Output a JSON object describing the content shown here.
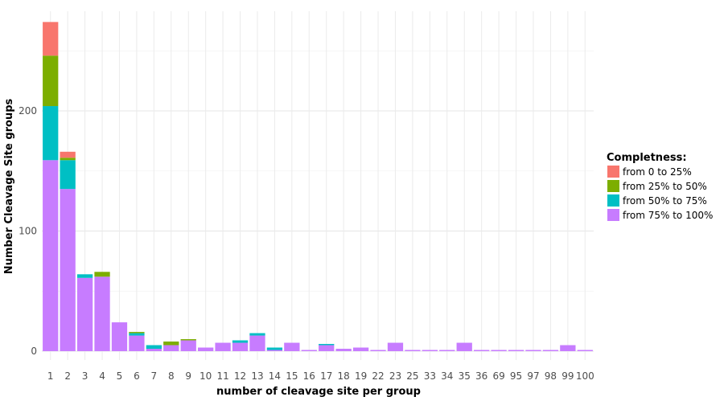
{
  "chart_data": {
    "type": "bar",
    "stacked": true,
    "title": "",
    "xlabel": "number of cleavage site per group",
    "ylabel": "Number Cleavage Site groups",
    "ylim": [
      0,
      280
    ],
    "yticks": [
      0,
      100,
      200
    ],
    "grid": true,
    "legend": {
      "title": "Completness:",
      "position": "right"
    },
    "categories": [
      "1",
      "2",
      "3",
      "4",
      "5",
      "6",
      "7",
      "8",
      "9",
      "10",
      "11",
      "12",
      "13",
      "14",
      "15",
      "16",
      "17",
      "18",
      "19",
      "22",
      "23",
      "25",
      "33",
      "34",
      "35",
      "36",
      "69",
      "95",
      "97",
      "98",
      "99",
      "100"
    ],
    "series": [
      {
        "name": "from 75% to 100%",
        "color": "#C77CFF",
        "values": [
          159,
          135,
          61,
          62,
          24,
          13,
          2,
          5,
          9,
          3,
          7,
          7,
          13,
          1,
          7,
          1,
          5,
          2,
          3,
          1,
          7,
          1,
          1,
          1,
          7,
          1,
          1,
          1,
          1,
          1,
          5,
          1
        ]
      },
      {
        "name": "from 50% to 75%",
        "color": "#00BFC4",
        "values": [
          45,
          24,
          3,
          0,
          0,
          2,
          3,
          0,
          0,
          0,
          0,
          2,
          2,
          2,
          0,
          0,
          1,
          0,
          0,
          0,
          0,
          0,
          0,
          0,
          0,
          0,
          0,
          0,
          0,
          0,
          0,
          0
        ]
      },
      {
        "name": "from 25% to 50%",
        "color": "#7CAE00",
        "values": [
          42,
          2,
          0,
          4,
          0,
          1,
          0,
          3,
          1,
          0,
          0,
          0,
          0,
          0,
          0,
          0,
          0,
          0,
          0,
          0,
          0,
          0,
          0,
          0,
          0,
          0,
          0,
          0,
          0,
          0,
          0,
          0
        ]
      },
      {
        "name": "from 0 to 25%",
        "color": "#F8766D",
        "values": [
          28,
          5,
          0,
          0,
          0,
          0,
          0,
          0,
          0,
          0,
          0,
          0,
          0,
          0,
          0,
          0,
          0,
          0,
          0,
          0,
          0,
          0,
          0,
          0,
          0,
          0,
          0,
          0,
          0,
          0,
          0,
          0
        ]
      }
    ],
    "legend_order": [
      "from 0 to 25%",
      "from 25% to 50%",
      "from 50% to 75%",
      "from 75% to 100%"
    ]
  }
}
